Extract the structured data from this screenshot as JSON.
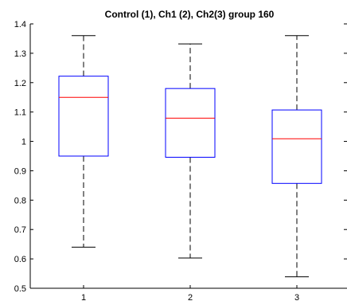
{
  "chart_data": {
    "type": "boxplot",
    "title": "Control (1), Ch1 (2), Ch2(3) group 160",
    "xlabel": "",
    "ylabel": "",
    "categories": [
      "1",
      "2",
      "3"
    ],
    "ylim": [
      0.5,
      1.4
    ],
    "yticks": [
      0.5,
      0.6,
      0.7,
      0.8,
      0.9,
      1.0,
      1.1,
      1.2,
      1.3,
      1.4
    ],
    "ytick_labels": [
      "0.5",
      "0.6",
      "0.7",
      "0.8",
      "0.9",
      "1",
      "1.1",
      "1.2",
      "1.3",
      "1.4"
    ],
    "grid": false,
    "boxes": [
      {
        "category": "1",
        "whisker_low": 0.64,
        "q1": 0.95,
        "median": 1.15,
        "q3": 1.222,
        "whisker_high": 1.36
      },
      {
        "category": "2",
        "whisker_low": 0.603,
        "q1": 0.946,
        "median": 1.079,
        "q3": 1.18,
        "whisker_high": 1.332
      },
      {
        "category": "3",
        "whisker_low": 0.539,
        "q1": 0.857,
        "median": 1.009,
        "q3": 1.107,
        "whisker_high": 1.36
      }
    ],
    "colors": {
      "box": "#0000ff",
      "median": "#ff0000",
      "whisker": "#000000",
      "axis": "#000000"
    }
  }
}
